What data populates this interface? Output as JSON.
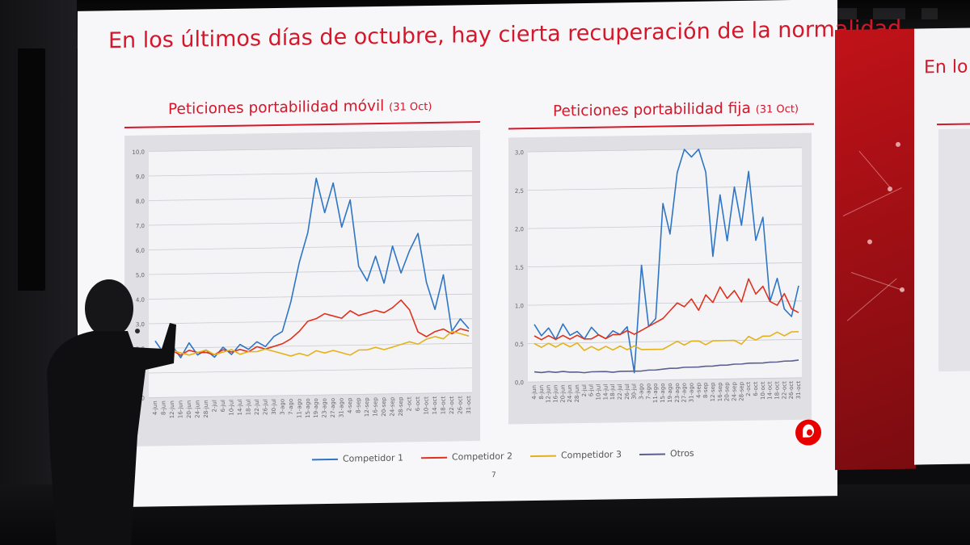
{
  "slide": {
    "title": "En los últimos días de octubre, hay cierta recuperación de la normalidad",
    "page_number": "7"
  },
  "next_slide": {
    "title_fragment": "En lo"
  },
  "panels": {
    "mobile": {
      "title": "Peticiones portabilidad móvil",
      "suffix": "(31 Oct)"
    },
    "fixed": {
      "title": "Peticiones portabilidad  fija",
      "suffix": "(31 Oct)"
    }
  },
  "legend": [
    {
      "label": "Competidor 1",
      "color": "#2f75c6"
    },
    {
      "label": "Competidor 2",
      "color": "#e0301e"
    },
    {
      "label": "Competidor 3",
      "color": "#e3b21b"
    },
    {
      "label": "Otros",
      "color": "#5a5f8e"
    }
  ],
  "chart_data": [
    {
      "type": "line",
      "title": "Peticiones portabilidad móvil (31 Oct)",
      "ylim": [
        0,
        10
      ],
      "yticks": [
        "0,0",
        "1,0",
        "2,0",
        "3,0",
        "4,0",
        "5,0",
        "6,0",
        "7,0",
        "8,0",
        "9,0",
        "10,0"
      ],
      "x": [
        "4-jun",
        "8-jun",
        "12-jun",
        "16-jun",
        "20-jun",
        "24-jun",
        "28-jun",
        "2-jul",
        "6-jul",
        "10-jul",
        "14-jul",
        "18-jul",
        "22-jul",
        "26-jul",
        "30-jul",
        "3-ago",
        "7-ago",
        "11-ago",
        "15-ago",
        "19-ago",
        "23-ago",
        "27-ago",
        "31-ago",
        "4-sep",
        "8-sep",
        "12-sep",
        "16-sep",
        "20-sep",
        "24-sep",
        "28-sep",
        "2-oct",
        "6-oct",
        "10-oct",
        "14-oct",
        "18-oct",
        "22-oct",
        "26-oct",
        "31-oct"
      ],
      "grid": true,
      "series": [
        {
          "name": "Competidor 1",
          "color": "#2f75c6",
          "values": [
            2.3,
            1.8,
            2.1,
            1.6,
            2.2,
            1.7,
            1.9,
            1.6,
            2.0,
            1.7,
            2.1,
            1.9,
            2.2,
            2.0,
            2.4,
            2.6,
            3.8,
            5.4,
            6.6,
            8.8,
            7.4,
            8.6,
            6.8,
            7.9,
            5.2,
            4.6,
            5.6,
            4.5,
            6.0,
            4.9,
            5.8,
            6.5,
            4.5,
            3.4,
            4.8,
            2.5,
            3.0,
            2.6
          ]
        },
        {
          "name": "Competidor 2",
          "color": "#e0301e",
          "values": [
            1.9,
            1.8,
            1.9,
            1.7,
            1.9,
            1.8,
            1.8,
            1.7,
            1.9,
            1.8,
            1.9,
            1.8,
            2.0,
            1.9,
            2.0,
            2.1,
            2.3,
            2.6,
            3.0,
            3.1,
            3.3,
            3.2,
            3.1,
            3.4,
            3.2,
            3.3,
            3.4,
            3.3,
            3.5,
            3.8,
            3.4,
            2.5,
            2.3,
            2.5,
            2.6,
            2.4,
            2.6,
            2.5
          ]
        },
        {
          "name": "Competidor 3",
          "color": "#e3b21b",
          "values": [
            1.8,
            1.7,
            1.9,
            1.8,
            1.7,
            1.8,
            1.9,
            1.7,
            1.8,
            1.9,
            1.7,
            1.8,
            1.8,
            1.9,
            1.8,
            1.7,
            1.6,
            1.7,
            1.6,
            1.8,
            1.7,
            1.8,
            1.7,
            1.6,
            1.8,
            1.8,
            1.9,
            1.8,
            1.9,
            2.0,
            2.1,
            2.0,
            2.2,
            2.3,
            2.2,
            2.5,
            2.4,
            2.3
          ]
        }
      ]
    },
    {
      "type": "line",
      "title": "Peticiones portabilidad  fija (31 Oct)",
      "ylim": [
        0,
        3.0
      ],
      "yticks": [
        "0,0",
        "0,5",
        "1,0",
        "1,5",
        "2,0",
        "2,5",
        "3,0"
      ],
      "x": [
        "4-jun",
        "8-jun",
        "12-jun",
        "16-jun",
        "20-jun",
        "24-jun",
        "28-jun",
        "2-jul",
        "6-jul",
        "10-jul",
        "14-jul",
        "18-jul",
        "22-jul",
        "26-jul",
        "30-jul",
        "3-ago",
        "7-ago",
        "11-ago",
        "15-ago",
        "19-ago",
        "23-ago",
        "27-ago",
        "31-ago",
        "4-sep",
        "8-sep",
        "12-sep",
        "16-sep",
        "20-sep",
        "24-sep",
        "28-sep",
        "2-oct",
        "6-oct",
        "10-oct",
        "14-oct",
        "18-oct",
        "22-oct",
        "26-oct",
        "31-oct"
      ],
      "grid": true,
      "series": [
        {
          "name": "Competidor 1",
          "color": "#2f75c6",
          "values": [
            0.75,
            0.6,
            0.7,
            0.55,
            0.75,
            0.6,
            0.65,
            0.55,
            0.7,
            0.6,
            0.55,
            0.65,
            0.6,
            0.7,
            0.1,
            1.5,
            0.7,
            0.8,
            2.3,
            1.9,
            2.7,
            3.0,
            2.9,
            3.0,
            2.7,
            1.6,
            2.4,
            1.8,
            2.5,
            2.0,
            2.7,
            1.8,
            2.1,
            1.0,
            1.3,
            0.9,
            0.8,
            1.2
          ]
        },
        {
          "name": "Competidor 2",
          "color": "#e0301e",
          "values": [
            0.6,
            0.55,
            0.6,
            0.55,
            0.6,
            0.55,
            0.6,
            0.55,
            0.55,
            0.6,
            0.55,
            0.6,
            0.6,
            0.65,
            0.6,
            0.65,
            0.7,
            0.75,
            0.8,
            0.9,
            1.0,
            0.95,
            1.05,
            0.9,
            1.1,
            1.0,
            1.2,
            1.05,
            1.15,
            1.0,
            1.3,
            1.1,
            1.2,
            1.0,
            0.95,
            1.1,
            0.9,
            0.85
          ]
        },
        {
          "name": "Competidor 3",
          "color": "#e3b21b",
          "values": [
            0.5,
            0.45,
            0.5,
            0.45,
            0.5,
            0.45,
            0.5,
            0.4,
            0.45,
            0.4,
            0.45,
            0.4,
            0.45,
            0.4,
            0.45,
            0.4,
            0.4,
            0.4,
            0.4,
            0.45,
            0.5,
            0.45,
            0.5,
            0.5,
            0.45,
            0.5,
            0.5,
            0.5,
            0.5,
            0.45,
            0.55,
            0.5,
            0.55,
            0.55,
            0.6,
            0.55,
            0.6,
            0.6
          ]
        },
        {
          "name": "Otros",
          "color": "#5a5f8e",
          "values": [
            0.13,
            0.12,
            0.13,
            0.12,
            0.13,
            0.12,
            0.12,
            0.11,
            0.12,
            0.12,
            0.12,
            0.11,
            0.12,
            0.12,
            0.12,
            0.12,
            0.13,
            0.13,
            0.14,
            0.15,
            0.15,
            0.16,
            0.16,
            0.16,
            0.17,
            0.17,
            0.18,
            0.18,
            0.19,
            0.19,
            0.2,
            0.2,
            0.2,
            0.21,
            0.21,
            0.22,
            0.22,
            0.23
          ]
        }
      ]
    }
  ]
}
